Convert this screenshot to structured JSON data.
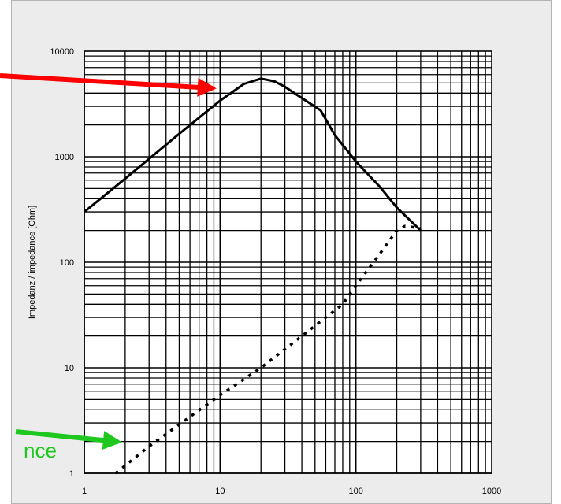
{
  "chart_data": {
    "type": "line",
    "title": "",
    "xlabel": "",
    "ylabel": "Impedanz / impedance [Ohm]",
    "x_scale": "log",
    "y_scale": "log",
    "xlim": [
      1,
      1000
    ],
    "ylim": [
      1,
      10000
    ],
    "x_ticks": [
      "1",
      "10",
      "100",
      "1000"
    ],
    "y_ticks": [
      "1",
      "10",
      "100",
      "1000",
      "10000"
    ],
    "grid": true,
    "legend": "none",
    "series": [
      {
        "style": "solid",
        "color": "#000000",
        "x": [
          1,
          2,
          5,
          10,
          15,
          20,
          25,
          30,
          40,
          55,
          70,
          100,
          150,
          200,
          300
        ],
        "y": [
          300,
          620,
          1650,
          3400,
          4900,
          5500,
          5200,
          4600,
          3600,
          2750,
          1600,
          900,
          520,
          330,
          200
        ]
      },
      {
        "style": "dotted",
        "color": "#000000",
        "x": [
          1.7,
          3,
          5,
          10,
          20,
          50,
          80,
          100,
          150,
          200,
          230,
          300
        ],
        "y": [
          1,
          1.8,
          2.9,
          5.5,
          10,
          25,
          40,
          60,
          120,
          200,
          220,
          210
        ]
      }
    ],
    "annotations": [
      {
        "type": "arrow",
        "color": "#ff0000"
      },
      {
        "type": "arrow",
        "color": "#1ec81e",
        "text": "nce"
      }
    ]
  }
}
